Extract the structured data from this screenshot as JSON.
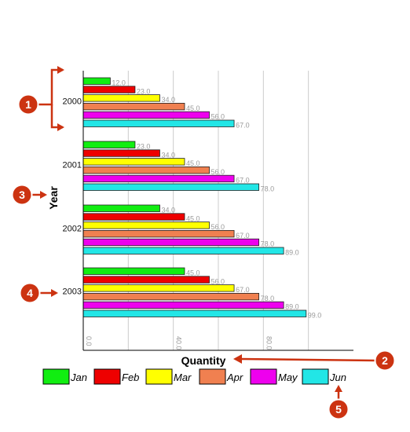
{
  "chart_data": {
    "type": "bar",
    "orientation": "horizontal",
    "categories": [
      "2000",
      "2001",
      "2002",
      "2003"
    ],
    "series": [
      {
        "name": "Jan",
        "color": "#11ee11",
        "values": [
          12.0,
          23.0,
          34.0,
          45.0
        ]
      },
      {
        "name": "Feb",
        "color": "#ee0000",
        "values": [
          23.0,
          34.0,
          45.0,
          56.0
        ]
      },
      {
        "name": "Mar",
        "color": "#ffff00",
        "values": [
          34.0,
          45.0,
          56.0,
          67.0
        ]
      },
      {
        "name": "Apr",
        "color": "#f08050",
        "values": [
          45.0,
          56.0,
          67.0,
          78.0
        ]
      },
      {
        "name": "May",
        "color": "#ee00ee",
        "values": [
          56.0,
          67.0,
          78.0,
          89.0
        ]
      },
      {
        "name": "Jun",
        "color": "#22e6e6",
        "values": [
          67.0,
          78.0,
          89.0,
          99.0
        ]
      }
    ],
    "xlabel": "Quantity",
    "ylabel": "Year",
    "xlim": [
      0,
      120
    ],
    "xticks": [
      "0.0",
      "40.0",
      "80.0"
    ],
    "grid": true,
    "legend": "bottom",
    "value_labels": true
  },
  "callouts": [
    "1",
    "2",
    "3",
    "4",
    "5"
  ],
  "colors": {
    "callout": "#cc3311",
    "callout_outline": "#ffffff",
    "grid": "#cccccc"
  }
}
